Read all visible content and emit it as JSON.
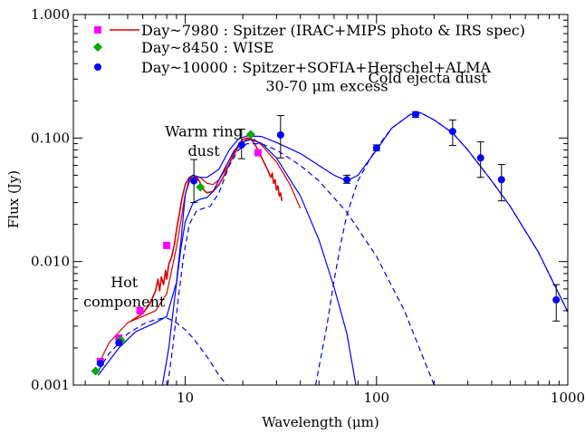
{
  "chart_data": {
    "type": "scatter",
    "xlabel": "Wavelength (μm)",
    "ylabel": "Flux (Jy)",
    "xscale": "log",
    "yscale": "log",
    "xlim": [
      2.6,
      1000
    ],
    "ylim": [
      0.001,
      1.0
    ],
    "x_ticks": [
      {
        "value": 10,
        "label": "10"
      },
      {
        "value": 100,
        "label": "100"
      },
      {
        "value": 1000,
        "label": "1000"
      }
    ],
    "y_ticks": [
      {
        "value": 0.001,
        "label": "0.001"
      },
      {
        "value": 0.01,
        "label": "0.010"
      },
      {
        "value": 0.1,
        "label": "0.100"
      },
      {
        "value": 1.0,
        "label": "1.000"
      }
    ],
    "grid": false,
    "legend_position": "top-left",
    "legend": [
      {
        "label": "Day~7980 : Spitzer (IRAC+MIPS photo & IRS spec)",
        "marker": "square",
        "color": "#ff00ff",
        "line_color": "#dd0000"
      },
      {
        "label": "Day~8450 : WISE",
        "marker": "diamond",
        "color": "#00aa00"
      },
      {
        "label": "Day~10000 : Spitzer+SOFIA+Herschel+ALMA",
        "marker": "circle",
        "color": "#0000ff"
      }
    ],
    "annotations": [
      {
        "text": "Hot",
        "x": 4.8,
        "y": 0.0062
      },
      {
        "text": "component",
        "x": 4.8,
        "y": 0.0043
      },
      {
        "text": "Warm ring",
        "x": 12.5,
        "y": 0.103
      },
      {
        "text": "dust",
        "x": 12.5,
        "y": 0.072
      },
      {
        "text": "30-70 μm excess",
        "x": 55,
        "y": 0.24
      },
      {
        "text": "Cold ejecta dust",
        "x": 185,
        "y": 0.28
      }
    ],
    "series": [
      {
        "name": "Day~7980 : Spitzer (IRAC+MIPS photo & IRS spec)",
        "marker": "square",
        "color": "#ff00ff",
        "points": [
          {
            "x": 3.6,
            "y": 0.00155
          },
          {
            "x": 4.5,
            "y": 0.0024
          },
          {
            "x": 5.8,
            "y": 0.004
          },
          {
            "x": 8.0,
            "y": 0.0135
          },
          {
            "x": 24,
            "y": 0.076
          }
        ]
      },
      {
        "name": "Day~8450 : WISE",
        "marker": "diamond",
        "color": "#00aa00",
        "points": [
          {
            "x": 3.4,
            "y": 0.0013
          },
          {
            "x": 4.6,
            "y": 0.0023
          },
          {
            "x": 12,
            "y": 0.04
          },
          {
            "x": 22,
            "y": 0.107
          }
        ]
      },
      {
        "name": "Day~10000 : Spitzer+SOFIA+Herschel+ALMA",
        "marker": "circle",
        "color": "#0000ff",
        "points": [
          {
            "x": 3.6,
            "y": 0.0015
          },
          {
            "x": 4.5,
            "y": 0.0022
          },
          {
            "x": 11.1,
            "y": 0.045,
            "ylo": 0.03,
            "yhi": 0.067
          },
          {
            "x": 19.7,
            "y": 0.088,
            "ylo": 0.068,
            "yhi": 0.118
          },
          {
            "x": 31.5,
            "y": 0.106,
            "ylo": 0.069,
            "yhi": 0.152
          },
          {
            "x": 70,
            "y": 0.046,
            "ylo": 0.043,
            "yhi": 0.05
          },
          {
            "x": 100,
            "y": 0.083,
            "ylo": 0.079,
            "yhi": 0.088
          },
          {
            "x": 160,
            "y": 0.155,
            "ylo": 0.147,
            "yhi": 0.163
          },
          {
            "x": 250,
            "y": 0.113,
            "ylo": 0.087,
            "yhi": 0.14
          },
          {
            "x": 350,
            "y": 0.069,
            "ylo": 0.048,
            "yhi": 0.093
          },
          {
            "x": 450,
            "y": 0.046,
            "ylo": 0.031,
            "yhi": 0.061
          },
          {
            "x": 870,
            "y": 0.0049,
            "ylo": 0.0033,
            "yhi": 0.0065
          }
        ]
      }
    ],
    "lines": [
      {
        "name": "IRS spectrum (Day~7980)",
        "color": "#dd0000",
        "style": "solid",
        "points": [
          [
            5.2,
            0.0033
          ],
          [
            6.0,
            0.0038
          ],
          [
            6.5,
            0.0045
          ],
          [
            7.0,
            0.0058
          ],
          [
            7.2,
            0.0072
          ],
          [
            7.35,
            0.0058
          ],
          [
            7.5,
            0.0075
          ],
          [
            7.7,
            0.0065
          ],
          [
            7.9,
            0.0085
          ],
          [
            8.0,
            0.0072
          ],
          [
            8.2,
            0.0095
          ],
          [
            8.5,
            0.011
          ],
          [
            8.8,
            0.014
          ],
          [
            9.0,
            0.018
          ],
          [
            9.3,
            0.024
          ],
          [
            9.6,
            0.032
          ],
          [
            10.0,
            0.042
          ],
          [
            10.5,
            0.048
          ],
          [
            11.0,
            0.05
          ],
          [
            11.5,
            0.048
          ],
          [
            12.0,
            0.043
          ],
          [
            12.5,
            0.038
          ],
          [
            13.0,
            0.036
          ],
          [
            14.0,
            0.037
          ],
          [
            15.0,
            0.042
          ],
          [
            16.0,
            0.05
          ],
          [
            17.0,
            0.062
          ],
          [
            18.0,
            0.075
          ],
          [
            19.0,
            0.088
          ],
          [
            20.0,
            0.097
          ],
          [
            21.0,
            0.1
          ],
          [
            22.0,
            0.099
          ],
          [
            23.0,
            0.09
          ],
          [
            24.0,
            0.08
          ],
          [
            25.0,
            0.07
          ],
          [
            26.0,
            0.062
          ],
          [
            27.0,
            0.055
          ],
          [
            28.0,
            0.048
          ],
          [
            28.5,
            0.052
          ],
          [
            29.0,
            0.043
          ],
          [
            29.5,
            0.046
          ],
          [
            30.0,
            0.038
          ],
          [
            30.5,
            0.041
          ],
          [
            31.0,
            0.034
          ],
          [
            31.5,
            0.036
          ],
          [
            32.0,
            0.031
          ]
        ]
      },
      {
        "name": "Model (Day~7980)",
        "color": "#dd0000",
        "style": "solid",
        "points": [
          [
            3.5,
            0.00145
          ],
          [
            4.0,
            0.0022
          ],
          [
            5.0,
            0.0032
          ],
          [
            6.0,
            0.0036
          ],
          [
            7.0,
            0.004
          ],
          [
            8.0,
            0.0055
          ],
          [
            9.0,
            0.013
          ],
          [
            10.0,
            0.035
          ],
          [
            10.5,
            0.044
          ],
          [
            11.0,
            0.048
          ],
          [
            12.0,
            0.048
          ],
          [
            13.0,
            0.043
          ],
          [
            14.0,
            0.042
          ],
          [
            15.0,
            0.046
          ],
          [
            17.0,
            0.062
          ],
          [
            19.0,
            0.085
          ],
          [
            21.0,
            0.098
          ],
          [
            23.0,
            0.097
          ],
          [
            25.0,
            0.088
          ],
          [
            30.0,
            0.064
          ],
          [
            35.0,
            0.043
          ],
          [
            40.0,
            0.027
          ]
        ]
      },
      {
        "name": "Total model (Day~10000)",
        "color": "#0000ff",
        "style": "solid",
        "points": [
          [
            3.5,
            0.0012
          ],
          [
            4.5,
            0.002
          ],
          [
            5.5,
            0.0027
          ],
          [
            7.0,
            0.0032
          ],
          [
            8.0,
            0.0036
          ],
          [
            9.0,
            0.0068
          ],
          [
            9.5,
            0.015
          ],
          [
            10.0,
            0.035
          ],
          [
            10.5,
            0.046
          ],
          [
            11.0,
            0.05
          ],
          [
            12.0,
            0.048
          ],
          [
            13.0,
            0.048
          ],
          [
            15.0,
            0.056
          ],
          [
            17.0,
            0.08
          ],
          [
            19.0,
            0.098
          ],
          [
            21.0,
            0.104
          ],
          [
            25.0,
            0.103
          ],
          [
            30.0,
            0.092
          ],
          [
            40.0,
            0.075
          ],
          [
            50.0,
            0.06
          ],
          [
            60.0,
            0.05
          ],
          [
            70.0,
            0.045
          ],
          [
            80.0,
            0.05
          ],
          [
            100.0,
            0.08
          ],
          [
            120.0,
            0.12
          ],
          [
            150.0,
            0.155
          ],
          [
            170.0,
            0.16
          ],
          [
            200.0,
            0.14
          ],
          [
            250.0,
            0.11
          ],
          [
            300.0,
            0.08
          ],
          [
            400.0,
            0.045
          ],
          [
            500.0,
            0.028
          ],
          [
            700.0,
            0.012
          ],
          [
            1000.0,
            0.0039
          ]
        ]
      },
      {
        "name": "Warm ring dust component",
        "color": "#0000ff",
        "style": "solid",
        "points": [
          [
            7.6,
            0.001
          ],
          [
            8.2,
            0.002
          ],
          [
            8.8,
            0.005
          ],
          [
            9.5,
            0.013
          ],
          [
            10.0,
            0.021
          ],
          [
            11.0,
            0.03
          ],
          [
            12.0,
            0.032
          ],
          [
            13.0,
            0.033
          ],
          [
            14.0,
            0.037
          ],
          [
            16.0,
            0.056
          ],
          [
            18.0,
            0.079
          ],
          [
            20.0,
            0.093
          ],
          [
            22.0,
            0.097
          ],
          [
            25.0,
            0.091
          ],
          [
            30.0,
            0.069
          ],
          [
            40.0,
            0.034
          ],
          [
            50.0,
            0.015
          ],
          [
            60.0,
            0.0062
          ],
          [
            70.0,
            0.0026
          ],
          [
            78.0,
            0.001
          ]
        ]
      },
      {
        "name": "Hot component",
        "color": "#0000ff",
        "style": "dashed",
        "points": [
          [
            3.5,
            0.0013
          ],
          [
            4.0,
            0.0018
          ],
          [
            5.0,
            0.0026
          ],
          [
            6.0,
            0.0031
          ],
          [
            7.0,
            0.0034
          ],
          [
            8.0,
            0.0035
          ],
          [
            9.0,
            0.0032
          ],
          [
            10.0,
            0.0028
          ],
          [
            11.0,
            0.0024
          ],
          [
            12.0,
            0.002
          ],
          [
            13.0,
            0.0017
          ],
          [
            15.0,
            0.0012
          ],
          [
            16.5,
            0.001
          ]
        ]
      },
      {
        "name": "Warm dust component",
        "color": "#0000ff",
        "style": "dashed",
        "points": [
          [
            8.1,
            0.001
          ],
          [
            8.6,
            0.002
          ],
          [
            9.2,
            0.005
          ],
          [
            9.8,
            0.011
          ],
          [
            10.5,
            0.02
          ],
          [
            11.5,
            0.026
          ],
          [
            12.5,
            0.027
          ],
          [
            13.5,
            0.028
          ],
          [
            15.0,
            0.036
          ],
          [
            17.0,
            0.06
          ],
          [
            19.0,
            0.08
          ],
          [
            21.0,
            0.09
          ],
          [
            25.0,
            0.09
          ],
          [
            30.0,
            0.08
          ],
          [
            40.0,
            0.06
          ],
          [
            50.0,
            0.045
          ],
          [
            70.0,
            0.025
          ],
          [
            100.0,
            0.011
          ],
          [
            140.0,
            0.004
          ],
          [
            200.0,
            0.001
          ]
        ]
      },
      {
        "name": "Cold ejecta dust component",
        "color": "#0000ff",
        "style": "dashed",
        "points": [
          [
            48.0,
            0.001
          ],
          [
            55.0,
            0.003
          ],
          [
            60.0,
            0.007
          ],
          [
            65.0,
            0.014
          ],
          [
            70.0,
            0.024
          ],
          [
            80.0,
            0.045
          ],
          [
            90.0,
            0.063
          ],
          [
            100.0,
            0.083
          ],
          [
            120.0,
            0.12
          ],
          [
            150.0,
            0.155
          ],
          [
            170.0,
            0.16
          ],
          [
            200.0,
            0.14
          ],
          [
            250.0,
            0.11
          ],
          [
            300.0,
            0.08
          ],
          [
            400.0,
            0.045
          ],
          [
            500.0,
            0.028
          ],
          [
            700.0,
            0.012
          ],
          [
            1000.0,
            0.0039
          ]
        ]
      }
    ]
  }
}
